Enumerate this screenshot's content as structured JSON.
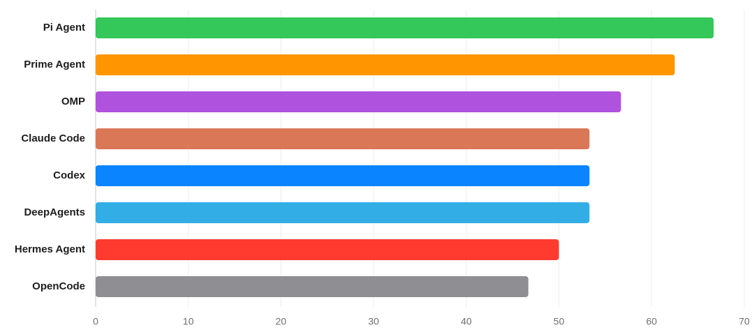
{
  "chart_data": {
    "type": "bar",
    "orientation": "horizontal",
    "categories": [
      "Pi Agent",
      "Prime Agent",
      "OMP",
      "Claude Code",
      "Codex",
      "DeepAgents",
      "Hermes Agent",
      "OpenCode"
    ],
    "values": [
      66.7,
      62.5,
      56.7,
      53.3,
      53.3,
      53.3,
      50.0,
      46.7
    ],
    "colors": [
      "#34c759",
      "#ff9500",
      "#af52de",
      "#d97757",
      "#0a84ff",
      "#32ade6",
      "#ff3b30",
      "#8e8e93"
    ],
    "xlim": [
      0,
      70
    ],
    "xticks": [
      0,
      10,
      20,
      30,
      40,
      50,
      60,
      70
    ],
    "grid": true
  }
}
